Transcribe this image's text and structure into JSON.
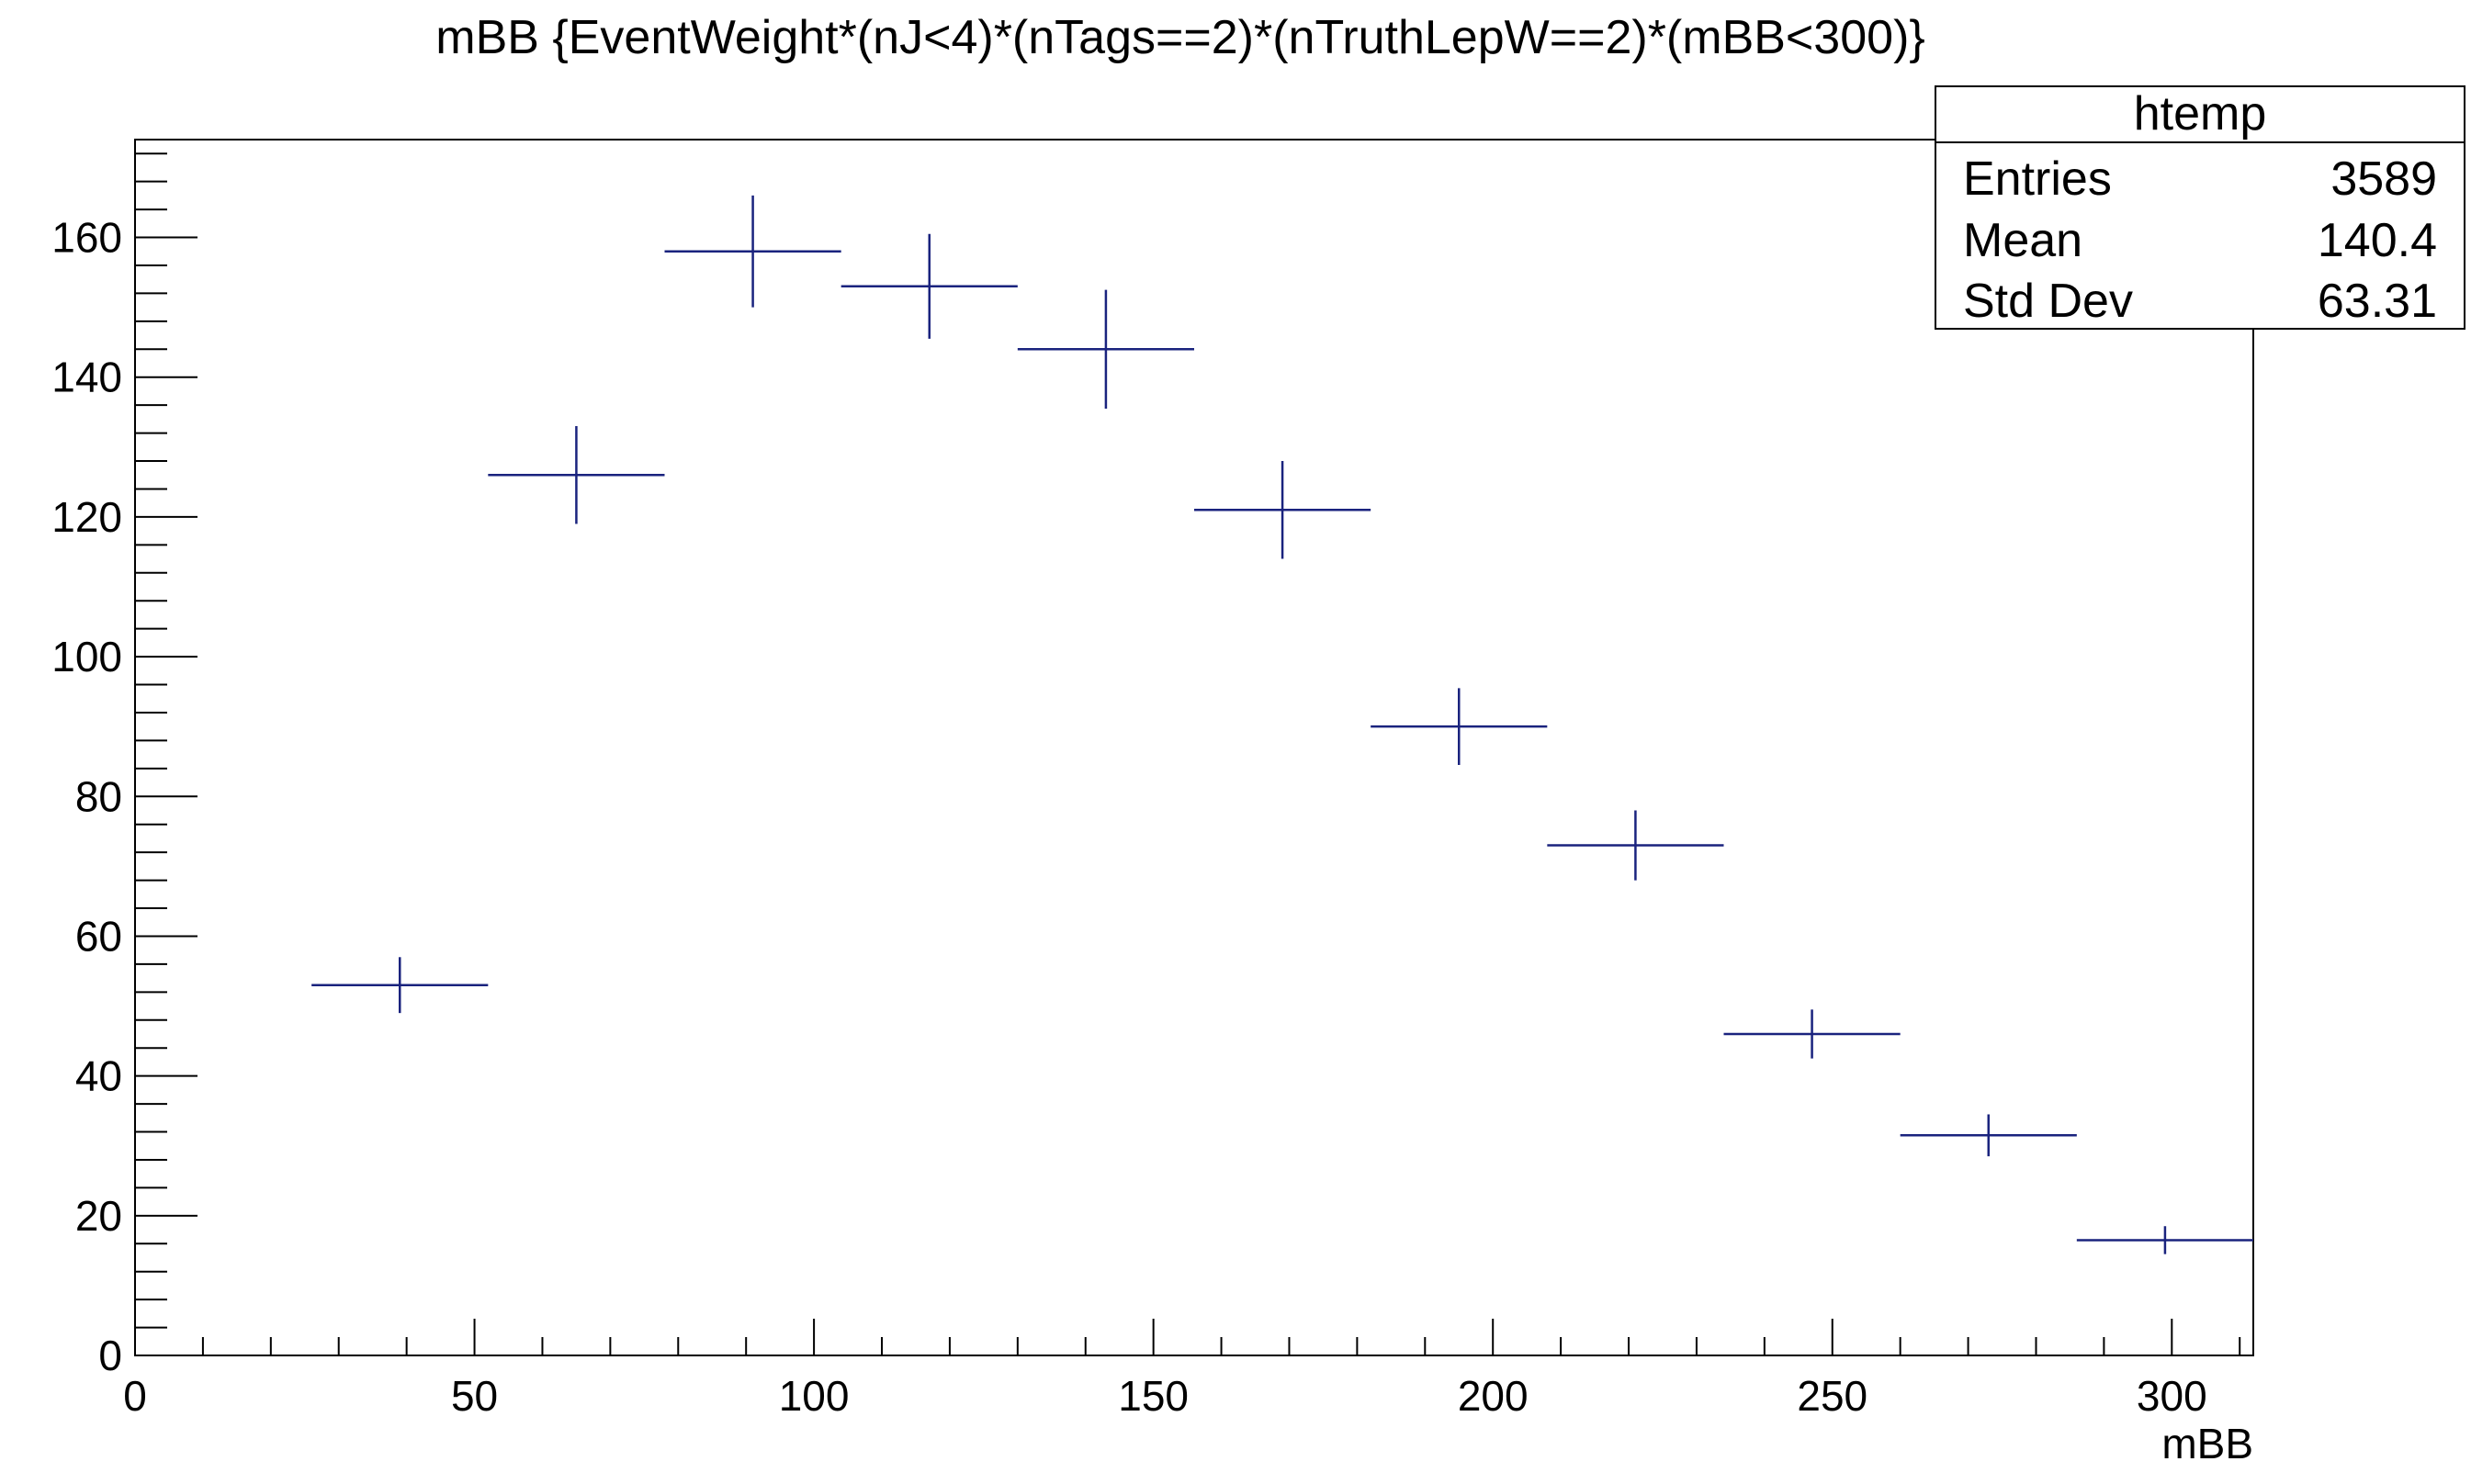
{
  "chart_data": {
    "type": "scatter",
    "title": "mBB {EventWeight*(nJ<4)*(nTags==2)*(nTruthLepW==2)*(mBB<300)}",
    "xlabel": "mBB",
    "ylabel": "",
    "xlim": [
      0,
      312
    ],
    "ylim": [
      0,
      174
    ],
    "x_ticks": [
      0,
      50,
      100,
      150,
      200,
      250,
      300
    ],
    "y_ticks": [
      0,
      20,
      40,
      60,
      80,
      100,
      120,
      140,
      160
    ],
    "grid": false,
    "line_color": "#1a237e",
    "bin_width": 26,
    "points": [
      {
        "x": 39,
        "y": 53,
        "err": 4
      },
      {
        "x": 65,
        "y": 126,
        "err": 7
      },
      {
        "x": 91,
        "y": 158,
        "err": 8
      },
      {
        "x": 117,
        "y": 153,
        "err": 7.5
      },
      {
        "x": 143,
        "y": 144,
        "err": 8.5
      },
      {
        "x": 169,
        "y": 121,
        "err": 7
      },
      {
        "x": 195,
        "y": 90,
        "err": 5.5
      },
      {
        "x": 221,
        "y": 73,
        "err": 5
      },
      {
        "x": 247,
        "y": 46,
        "err": 3.5
      },
      {
        "x": 273,
        "y": 31.5,
        "err": 3
      },
      {
        "x": 299,
        "y": 16.5,
        "err": 2
      }
    ]
  },
  "stats": {
    "name": "htemp",
    "rows": [
      {
        "label": "Entries",
        "value": "3589"
      },
      {
        "label": "Mean",
        "value": "140.4"
      },
      {
        "label": "Std Dev",
        "value": "63.31"
      }
    ]
  }
}
